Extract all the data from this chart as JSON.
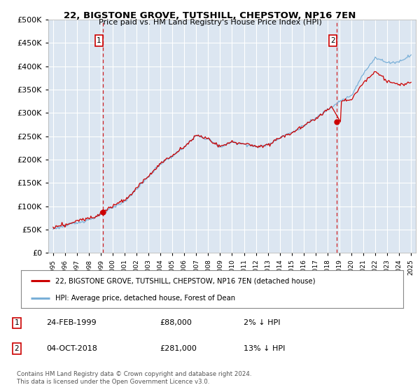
{
  "title1": "22, BIGSTONE GROVE, TUTSHILL, CHEPSTOW, NP16 7EN",
  "title2": "Price paid vs. HM Land Registry's House Price Index (HPI)",
  "legend_line1": "22, BIGSTONE GROVE, TUTSHILL, CHEPSTOW, NP16 7EN (detached house)",
  "legend_line2": "HPI: Average price, detached house, Forest of Dean",
  "annotation1_date": "24-FEB-1999",
  "annotation1_price": "£88,000",
  "annotation1_hpi": "2% ↓ HPI",
  "annotation2_date": "04-OCT-2018",
  "annotation2_price": "£281,000",
  "annotation2_hpi": "13% ↓ HPI",
  "footnote": "Contains HM Land Registry data © Crown copyright and database right 2024.\nThis data is licensed under the Open Government Licence v3.0.",
  "bg_color": "#dce6f1",
  "red_color": "#cc0000",
  "blue_color": "#7ab0d8",
  "grid_color": "#ffffff",
  "sale1_x": 1999.15,
  "sale1_y": 88000,
  "sale2_x": 2018.75,
  "sale2_y": 281000,
  "ylim": [
    0,
    500000
  ],
  "xlim_left": 1994.6,
  "xlim_right": 2025.4
}
